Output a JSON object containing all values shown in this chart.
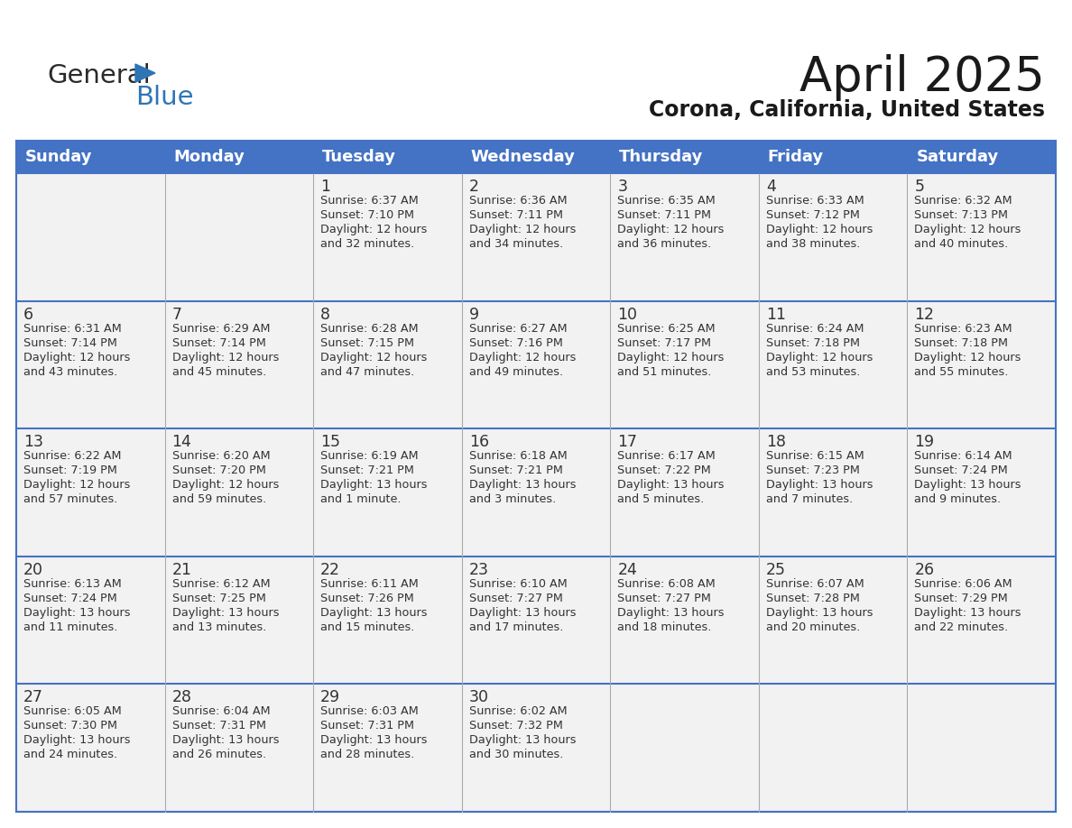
{
  "title": "April 2025",
  "subtitle": "Corona, California, United States",
  "days_of_week": [
    "Sunday",
    "Monday",
    "Tuesday",
    "Wednesday",
    "Thursday",
    "Friday",
    "Saturday"
  ],
  "header_bg": "#4472C4",
  "header_text": "#FFFFFF",
  "cell_bg": "#F2F2F2",
  "border_color": "#4472C4",
  "sep_color": "#AAAAAA",
  "text_color": "#333333",
  "title_color": "#1a1a1a",
  "calendar_data": [
    [
      {
        "day": "",
        "sunrise": "",
        "sunset": "",
        "daylight": ""
      },
      {
        "day": "",
        "sunrise": "",
        "sunset": "",
        "daylight": ""
      },
      {
        "day": "1",
        "sunrise": "Sunrise: 6:37 AM",
        "sunset": "Sunset: 7:10 PM",
        "daylight": "Daylight: 12 hours\nand 32 minutes."
      },
      {
        "day": "2",
        "sunrise": "Sunrise: 6:36 AM",
        "sunset": "Sunset: 7:11 PM",
        "daylight": "Daylight: 12 hours\nand 34 minutes."
      },
      {
        "day": "3",
        "sunrise": "Sunrise: 6:35 AM",
        "sunset": "Sunset: 7:11 PM",
        "daylight": "Daylight: 12 hours\nand 36 minutes."
      },
      {
        "day": "4",
        "sunrise": "Sunrise: 6:33 AM",
        "sunset": "Sunset: 7:12 PM",
        "daylight": "Daylight: 12 hours\nand 38 minutes."
      },
      {
        "day": "5",
        "sunrise": "Sunrise: 6:32 AM",
        "sunset": "Sunset: 7:13 PM",
        "daylight": "Daylight: 12 hours\nand 40 minutes."
      }
    ],
    [
      {
        "day": "6",
        "sunrise": "Sunrise: 6:31 AM",
        "sunset": "Sunset: 7:14 PM",
        "daylight": "Daylight: 12 hours\nand 43 minutes."
      },
      {
        "day": "7",
        "sunrise": "Sunrise: 6:29 AM",
        "sunset": "Sunset: 7:14 PM",
        "daylight": "Daylight: 12 hours\nand 45 minutes."
      },
      {
        "day": "8",
        "sunrise": "Sunrise: 6:28 AM",
        "sunset": "Sunset: 7:15 PM",
        "daylight": "Daylight: 12 hours\nand 47 minutes."
      },
      {
        "day": "9",
        "sunrise": "Sunrise: 6:27 AM",
        "sunset": "Sunset: 7:16 PM",
        "daylight": "Daylight: 12 hours\nand 49 minutes."
      },
      {
        "day": "10",
        "sunrise": "Sunrise: 6:25 AM",
        "sunset": "Sunset: 7:17 PM",
        "daylight": "Daylight: 12 hours\nand 51 minutes."
      },
      {
        "day": "11",
        "sunrise": "Sunrise: 6:24 AM",
        "sunset": "Sunset: 7:18 PM",
        "daylight": "Daylight: 12 hours\nand 53 minutes."
      },
      {
        "day": "12",
        "sunrise": "Sunrise: 6:23 AM",
        "sunset": "Sunset: 7:18 PM",
        "daylight": "Daylight: 12 hours\nand 55 minutes."
      }
    ],
    [
      {
        "day": "13",
        "sunrise": "Sunrise: 6:22 AM",
        "sunset": "Sunset: 7:19 PM",
        "daylight": "Daylight: 12 hours\nand 57 minutes."
      },
      {
        "day": "14",
        "sunrise": "Sunrise: 6:20 AM",
        "sunset": "Sunset: 7:20 PM",
        "daylight": "Daylight: 12 hours\nand 59 minutes."
      },
      {
        "day": "15",
        "sunrise": "Sunrise: 6:19 AM",
        "sunset": "Sunset: 7:21 PM",
        "daylight": "Daylight: 13 hours\nand 1 minute."
      },
      {
        "day": "16",
        "sunrise": "Sunrise: 6:18 AM",
        "sunset": "Sunset: 7:21 PM",
        "daylight": "Daylight: 13 hours\nand 3 minutes."
      },
      {
        "day": "17",
        "sunrise": "Sunrise: 6:17 AM",
        "sunset": "Sunset: 7:22 PM",
        "daylight": "Daylight: 13 hours\nand 5 minutes."
      },
      {
        "day": "18",
        "sunrise": "Sunrise: 6:15 AM",
        "sunset": "Sunset: 7:23 PM",
        "daylight": "Daylight: 13 hours\nand 7 minutes."
      },
      {
        "day": "19",
        "sunrise": "Sunrise: 6:14 AM",
        "sunset": "Sunset: 7:24 PM",
        "daylight": "Daylight: 13 hours\nand 9 minutes."
      }
    ],
    [
      {
        "day": "20",
        "sunrise": "Sunrise: 6:13 AM",
        "sunset": "Sunset: 7:24 PM",
        "daylight": "Daylight: 13 hours\nand 11 minutes."
      },
      {
        "day": "21",
        "sunrise": "Sunrise: 6:12 AM",
        "sunset": "Sunset: 7:25 PM",
        "daylight": "Daylight: 13 hours\nand 13 minutes."
      },
      {
        "day": "22",
        "sunrise": "Sunrise: 6:11 AM",
        "sunset": "Sunset: 7:26 PM",
        "daylight": "Daylight: 13 hours\nand 15 minutes."
      },
      {
        "day": "23",
        "sunrise": "Sunrise: 6:10 AM",
        "sunset": "Sunset: 7:27 PM",
        "daylight": "Daylight: 13 hours\nand 17 minutes."
      },
      {
        "day": "24",
        "sunrise": "Sunrise: 6:08 AM",
        "sunset": "Sunset: 7:27 PM",
        "daylight": "Daylight: 13 hours\nand 18 minutes."
      },
      {
        "day": "25",
        "sunrise": "Sunrise: 6:07 AM",
        "sunset": "Sunset: 7:28 PM",
        "daylight": "Daylight: 13 hours\nand 20 minutes."
      },
      {
        "day": "26",
        "sunrise": "Sunrise: 6:06 AM",
        "sunset": "Sunset: 7:29 PM",
        "daylight": "Daylight: 13 hours\nand 22 minutes."
      }
    ],
    [
      {
        "day": "27",
        "sunrise": "Sunrise: 6:05 AM",
        "sunset": "Sunset: 7:30 PM",
        "daylight": "Daylight: 13 hours\nand 24 minutes."
      },
      {
        "day": "28",
        "sunrise": "Sunrise: 6:04 AM",
        "sunset": "Sunset: 7:31 PM",
        "daylight": "Daylight: 13 hours\nand 26 minutes."
      },
      {
        "day": "29",
        "sunrise": "Sunrise: 6:03 AM",
        "sunset": "Sunset: 7:31 PM",
        "daylight": "Daylight: 13 hours\nand 28 minutes."
      },
      {
        "day": "30",
        "sunrise": "Sunrise: 6:02 AM",
        "sunset": "Sunset: 7:32 PM",
        "daylight": "Daylight: 13 hours\nand 30 minutes."
      },
      {
        "day": "",
        "sunrise": "",
        "sunset": "",
        "daylight": ""
      },
      {
        "day": "",
        "sunrise": "",
        "sunset": "",
        "daylight": ""
      },
      {
        "day": "",
        "sunrise": "",
        "sunset": "",
        "daylight": ""
      }
    ]
  ],
  "logo_color_general": "#2a2a2a",
  "logo_color_blue": "#2E75B6",
  "logo_triangle_color": "#2E75B6"
}
